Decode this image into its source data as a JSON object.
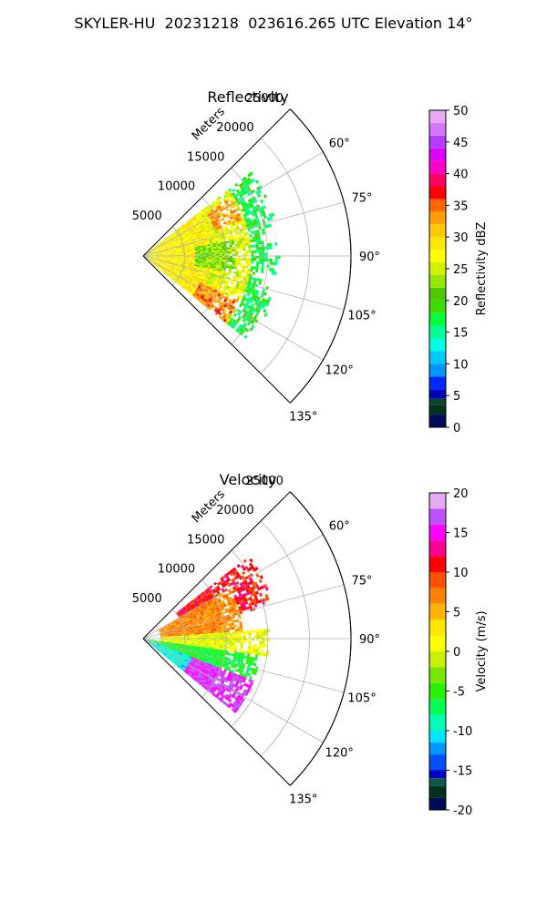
{
  "figure": {
    "suptitle": "SKYLER-HU  20231218  023616.265 UTC Elevation 14°"
  },
  "chart_data": [
    {
      "type": "polar-sector",
      "title": "Reflectivity",
      "range_axis_label": "Meters",
      "range_ticks": [
        5000,
        10000,
        15000,
        20000,
        25000
      ],
      "range_lim": [
        0,
        25000
      ],
      "angle_ticks": [
        "60°",
        "75°",
        "90°",
        "105°",
        "120°",
        "135°"
      ],
      "angle_ticks_deg": [
        60,
        75,
        90,
        105,
        120,
        135
      ],
      "angle_lim_deg": [
        45,
        135
      ],
      "grid": true,
      "colorbar": {
        "label": "Reflectivity dBZ",
        "min": 0,
        "max": 50,
        "ticks": [
          0,
          5,
          10,
          15,
          20,
          25,
          30,
          35,
          40,
          45,
          50
        ],
        "colors": [
          {
            "v": 0,
            "c": "#000a5a"
          },
          {
            "v": 2,
            "c": "#05321e"
          },
          {
            "v": 3.5,
            "c": "#0a4628"
          },
          {
            "v": 4.5,
            "c": "#0000b4"
          },
          {
            "v": 6,
            "c": "#0028ff"
          },
          {
            "v": 8,
            "c": "#0096ff"
          },
          {
            "v": 10,
            "c": "#00c8ff"
          },
          {
            "v": 12,
            "c": "#00ffdc"
          },
          {
            "v": 14,
            "c": "#00ff96"
          },
          {
            "v": 16,
            "c": "#00ff3c"
          },
          {
            "v": 18,
            "c": "#3cdc00"
          },
          {
            "v": 20,
            "c": "#50c800"
          },
          {
            "v": 22,
            "c": "#96e600"
          },
          {
            "v": 24,
            "c": "#d2f000"
          },
          {
            "v": 26,
            "c": "#ffff00"
          },
          {
            "v": 28,
            "c": "#ffe600"
          },
          {
            "v": 30,
            "c": "#ffc800"
          },
          {
            "v": 32,
            "c": "#ffa000"
          },
          {
            "v": 34,
            "c": "#ff6400"
          },
          {
            "v": 36,
            "c": "#ff0000"
          },
          {
            "v": 38,
            "c": "#ff0064"
          },
          {
            "v": 40,
            "c": "#ff00c8"
          },
          {
            "v": 42,
            "c": "#dc00ff"
          },
          {
            "v": 44,
            "c": "#b43cff"
          },
          {
            "v": 46,
            "c": "#d278ff"
          },
          {
            "v": 48,
            "c": "#e6aaf5"
          },
          {
            "v": 50,
            "c": "#fae6fa"
          }
        ]
      },
      "field": {
        "description_ranges_m": [
          0,
          16000
        ],
        "azimuth_range_deg": [
          52,
          128
        ],
        "regions": [
          {
            "az": [
              50,
              130
            ],
            "r": [
              0,
              8000
            ],
            "dbz": 28
          },
          {
            "az": [
              50,
              130
            ],
            "r": [
              8000,
              13000
            ],
            "dbz": 26
          },
          {
            "az": [
              55,
              70
            ],
            "r": [
              9000,
              12500
            ],
            "dbz": 33
          },
          {
            "az": [
              115,
              128
            ],
            "r": [
              7500,
              12500
            ],
            "dbz": 34
          },
          {
            "az": [
              80,
              100
            ],
            "r": [
              6000,
              11000
            ],
            "dbz": 22
          },
          {
            "az": [
              50,
              130
            ],
            "r": [
              13000,
              16500
            ],
            "dbz": 17
          }
        ]
      }
    },
    {
      "type": "polar-sector",
      "title": "Velocity",
      "range_axis_label": "Meters",
      "range_ticks": [
        5000,
        10000,
        15000,
        20000,
        25000
      ],
      "range_lim": [
        0,
        25000
      ],
      "angle_ticks": [
        "60°",
        "75°",
        "90°",
        "105°",
        "120°",
        "135°"
      ],
      "angle_ticks_deg": [
        60,
        75,
        90,
        105,
        120,
        135
      ],
      "angle_lim_deg": [
        45,
        135
      ],
      "grid": true,
      "colorbar": {
        "label": "Velocity (m/s)",
        "min": -20,
        "max": 20,
        "ticks": [
          -20,
          -15,
          -10,
          -5,
          0,
          5,
          10,
          15,
          20
        ],
        "colors": [
          {
            "v": -20,
            "c": "#000a5a"
          },
          {
            "v": -18.5,
            "c": "#05321e"
          },
          {
            "v": -17,
            "c": "#0a5a46"
          },
          {
            "v": -16,
            "c": "#0000c8"
          },
          {
            "v": -15,
            "c": "#0050ff"
          },
          {
            "v": -13,
            "c": "#0096ff"
          },
          {
            "v": -11.5,
            "c": "#00e6ff"
          },
          {
            "v": -10,
            "c": "#00ffb4"
          },
          {
            "v": -8,
            "c": "#00ff50"
          },
          {
            "v": -6,
            "c": "#28f000"
          },
          {
            "v": -4,
            "c": "#78e600"
          },
          {
            "v": -2,
            "c": "#c8f000"
          },
          {
            "v": 0,
            "c": "#ffff00"
          },
          {
            "v": 2,
            "c": "#ffe600"
          },
          {
            "v": 4,
            "c": "#ffb400"
          },
          {
            "v": 6,
            "c": "#ff8200"
          },
          {
            "v": 8,
            "c": "#ff5000"
          },
          {
            "v": 10,
            "c": "#ff0000"
          },
          {
            "v": 12,
            "c": "#ff0096"
          },
          {
            "v": 14,
            "c": "#ff00ff"
          },
          {
            "v": 16,
            "c": "#be50ff"
          },
          {
            "v": 18,
            "c": "#e6aaf5"
          },
          {
            "v": 20,
            "c": "#fae6fa"
          }
        ]
      },
      "field": {
        "description_ranges_m": [
          0,
          16000
        ],
        "azimuth_range_deg": [
          52,
          128
        ],
        "regions": [
          {
            "az": [
              50,
              75
            ],
            "r": [
              5000,
              16000
            ],
            "vel": 11
          },
          {
            "az": [
              60,
              85
            ],
            "r": [
              2000,
              12000
            ],
            "vel": 7
          },
          {
            "az": [
              85,
              98
            ],
            "r": [
              2000,
              15000
            ],
            "vel": 0
          },
          {
            "az": [
              98,
              110
            ],
            "r": [
              0,
              14000
            ],
            "vel": -6
          },
          {
            "az": [
              110,
              128
            ],
            "r": [
              6000,
              14000
            ],
            "vel": 16
          },
          {
            "az": [
              110,
              128
            ],
            "r": [
              0,
              6000
            ],
            "vel": -10
          }
        ]
      }
    }
  ]
}
